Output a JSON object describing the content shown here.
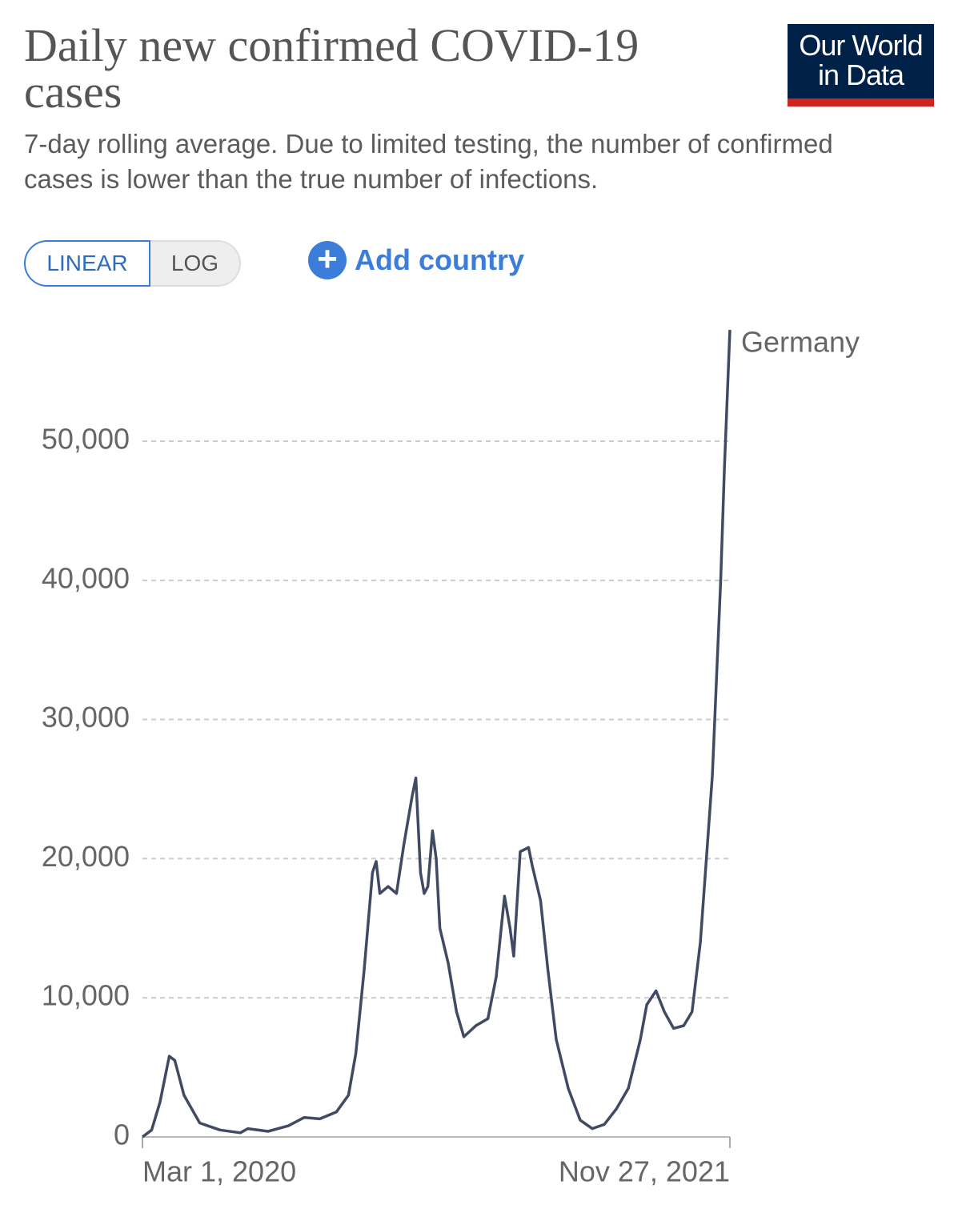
{
  "logo": [
    "Our World",
    "in Data"
  ],
  "controls": {
    "linear": "LINEAR",
    "log": "LOG",
    "add": "Add country"
  },
  "chart_data": {
    "type": "line",
    "title": "Daily new confirmed COVID-19 cases",
    "subtitle": "7-day rolling average. Due to limited testing, the number of confirmed cases is lower than the true number of infections.",
    "x": [
      "2020-03-01",
      "2020-03-11",
      "2020-03-20",
      "2020-03-30",
      "2020-04-05",
      "2020-04-15",
      "2020-05-02",
      "2020-05-24",
      "2020-06-15",
      "2020-06-23",
      "2020-07-15",
      "2020-08-06",
      "2020-08-23",
      "2020-09-09",
      "2020-09-27",
      "2020-10-10",
      "2020-10-18",
      "2020-10-27",
      "2020-11-05",
      "2020-11-09",
      "2020-11-13",
      "2020-11-22",
      "2020-12-01",
      "2020-12-09",
      "2020-12-18",
      "2020-12-22",
      "2020-12-27",
      "2020-12-31",
      "2021-01-04",
      "2021-01-09",
      "2021-01-13",
      "2021-01-17",
      "2021-01-26",
      "2021-02-04",
      "2021-02-12",
      "2021-02-25",
      "2021-03-10",
      "2021-03-19",
      "2021-03-28",
      "2021-04-03",
      "2021-04-07",
      "2021-04-14",
      "2021-04-23",
      "2021-04-27",
      "2021-05-06",
      "2021-05-14",
      "2021-05-23",
      "2021-06-05",
      "2021-06-18",
      "2021-07-01",
      "2021-07-14",
      "2021-07-27",
      "2021-08-09",
      "2021-08-22",
      "2021-08-29",
      "2021-09-08",
      "2021-09-17",
      "2021-09-27",
      "2021-10-08",
      "2021-10-17",
      "2021-10-26",
      "2021-11-01",
      "2021-11-08",
      "2021-11-17",
      "2021-11-21",
      "2021-11-27"
    ],
    "series": [
      {
        "name": "Germany",
        "color": "#404b63",
        "values": [
          0,
          500,
          2500,
          5800,
          5500,
          3000,
          1000,
          500,
          300,
          600,
          400,
          800,
          1400,
          1300,
          1800,
          3000,
          6000,
          12000,
          19000,
          19800,
          17500,
          18000,
          17500,
          21000,
          24500,
          25800,
          19000,
          17500,
          18000,
          22000,
          20000,
          15000,
          12500,
          9000,
          7200,
          8000,
          8500,
          11500,
          17300,
          15000,
          13000,
          20500,
          20800,
          19500,
          17000,
          12000,
          7000,
          3500,
          1200,
          600,
          900,
          2000,
          3500,
          7000,
          9500,
          10500,
          9000,
          7800,
          8000,
          9000,
          14000,
          19500,
          26000,
          40000,
          48000,
          58000
        ]
      }
    ],
    "xlim": [
      "2020-03-01",
      "2021-11-27"
    ],
    "xticks": [
      {
        "value": "2020-03-01",
        "label": "Mar 1, 2020"
      },
      {
        "value": "2021-11-27",
        "label": "Nov 27, 2021"
      }
    ],
    "ylim": [
      0,
      58000
    ],
    "yticks": [
      0,
      {
        "value": 10000,
        "label": "10,000"
      },
      {
        "value": 20000,
        "label": "20,000"
      },
      {
        "value": 30000,
        "label": "30,000"
      },
      {
        "value": 40000,
        "label": "40,000"
      },
      {
        "value": 50000,
        "label": "50,000"
      }
    ],
    "grid": true
  }
}
